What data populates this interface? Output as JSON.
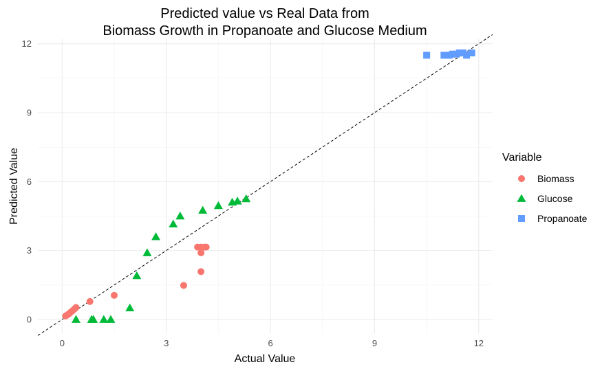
{
  "chart_data": {
    "type": "scatter",
    "title": "Predicted value vs Real Data from",
    "subtitle": "Biomass Growth in Propanoate and Glucose Medium",
    "xlabel": "Actual Value",
    "ylabel": "Predicted Value",
    "xlim": [
      -0.7,
      12.4
    ],
    "ylim": [
      -0.6,
      12.2
    ],
    "xticks": [
      0,
      3,
      6,
      9,
      12
    ],
    "yticks": [
      0,
      3,
      6,
      9,
      12
    ],
    "grid": true,
    "legend": {
      "title": "Variable",
      "position": "right"
    },
    "reference_line": {
      "style": "dashed",
      "slope": 1,
      "intercept": 0
    },
    "series": [
      {
        "name": "Biomass",
        "color": "#F8766D",
        "marker": "circle",
        "points": [
          [
            0.1,
            0.15
          ],
          [
            0.15,
            0.2
          ],
          [
            0.2,
            0.25
          ],
          [
            0.25,
            0.32
          ],
          [
            0.3,
            0.38
          ],
          [
            0.35,
            0.45
          ],
          [
            0.4,
            0.52
          ],
          [
            0.8,
            0.78
          ],
          [
            1.5,
            1.05
          ],
          [
            3.5,
            1.48
          ],
          [
            3.9,
            3.15
          ],
          [
            4.0,
            3.15
          ],
          [
            4.1,
            3.15
          ],
          [
            4.15,
            3.15
          ],
          [
            4.0,
            2.9
          ],
          [
            4.0,
            2.08
          ]
        ]
      },
      {
        "name": "Glucose",
        "color": "#00BA38",
        "marker": "triangle",
        "points": [
          [
            0.4,
            0.0
          ],
          [
            0.85,
            0.0
          ],
          [
            0.9,
            0.0
          ],
          [
            1.2,
            0.0
          ],
          [
            1.4,
            0.0
          ],
          [
            1.95,
            0.5
          ],
          [
            2.15,
            1.9
          ],
          [
            2.45,
            2.9
          ],
          [
            2.7,
            3.6
          ],
          [
            3.2,
            4.15
          ],
          [
            3.4,
            4.5
          ],
          [
            4.05,
            4.75
          ],
          [
            4.5,
            4.95
          ],
          [
            4.9,
            5.1
          ],
          [
            5.05,
            5.15
          ],
          [
            5.3,
            5.25
          ]
        ]
      },
      {
        "name": "Propanoate",
        "color": "#619CFF",
        "marker": "square",
        "points": [
          [
            10.5,
            11.5
          ],
          [
            11.0,
            11.5
          ],
          [
            11.15,
            11.5
          ],
          [
            11.25,
            11.55
          ],
          [
            11.35,
            11.55
          ],
          [
            11.45,
            11.6
          ],
          [
            11.55,
            11.6
          ],
          [
            11.65,
            11.5
          ],
          [
            11.8,
            11.6
          ]
        ]
      }
    ]
  }
}
